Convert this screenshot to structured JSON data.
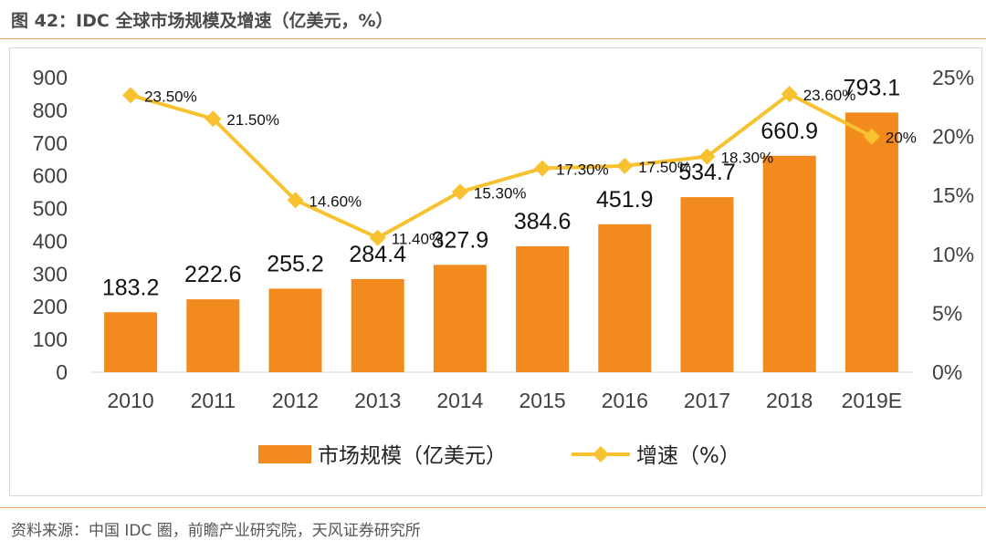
{
  "figure": {
    "title": "图 42：IDC 全球市场规模及增速（亿美元，%）",
    "source": "资料来源：中国 IDC 圈，前瞻产业研究院，天风证券研究所"
  },
  "colors": {
    "bar": "#F28A1E",
    "line": "#F7C12F",
    "rule": "#E9A25E",
    "axis_text": "#404040"
  },
  "chart_data": {
    "type": "bar",
    "categories": [
      "2010",
      "2011",
      "2012",
      "2013",
      "2014",
      "2015",
      "2016",
      "2017",
      "2018",
      "2019E"
    ],
    "series": [
      {
        "name": "市场规模（亿美元）",
        "type": "bar",
        "axis": "left",
        "values": [
          183.2,
          222.6,
          255.2,
          284.4,
          327.9,
          384.6,
          451.9,
          534.7,
          660.9,
          793.1
        ],
        "labels": [
          "183.2",
          "222.6",
          "255.2",
          "284.4",
          "327.9",
          "384.6",
          "451.9",
          "534.7",
          "660.9",
          "793.1"
        ]
      },
      {
        "name": "增速（%）",
        "type": "line",
        "axis": "right",
        "values": [
          23.5,
          21.5,
          14.6,
          11.4,
          15.3,
          17.3,
          17.5,
          18.3,
          23.6,
          20
        ],
        "labels": [
          "23.50%",
          "21.50%",
          "14.60%",
          "11.40%",
          "15.30%",
          "17.30%",
          "17.50%",
          "18.30%",
          "23.60%",
          "20%"
        ]
      }
    ],
    "y_left": {
      "range": [
        0,
        900
      ],
      "ticks": [
        0,
        100,
        200,
        300,
        400,
        500,
        600,
        700,
        800,
        900
      ],
      "tick_labels": [
        "0",
        "100",
        "200",
        "300",
        "400",
        "500",
        "600",
        "700",
        "800",
        "900"
      ]
    },
    "y_right": {
      "range": [
        0,
        25
      ],
      "ticks": [
        0,
        5,
        10,
        15,
        20,
        25
      ],
      "tick_labels": [
        "0%",
        "5%",
        "10%",
        "15%",
        "20%",
        "25%"
      ]
    },
    "grid": false,
    "legend_position": "bottom"
  }
}
